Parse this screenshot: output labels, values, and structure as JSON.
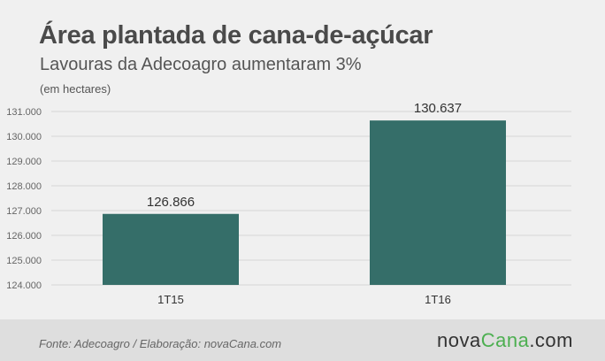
{
  "chart_data": {
    "type": "bar",
    "title": "Área plantada de cana-de-açúcar",
    "subtitle": "Lavouras da Adecoagro aumentaram 3%",
    "unit_label": "(em hectares)",
    "categories": [
      "1T15",
      "1T16"
    ],
    "values": [
      126866,
      130637
    ],
    "value_labels": [
      "126.866",
      "130.637"
    ],
    "ylim": [
      124000,
      131000
    ],
    "yticks": [
      124000,
      125000,
      126000,
      127000,
      128000,
      129000,
      130000,
      131000
    ],
    "ytick_labels": [
      "124.000",
      "125.000",
      "126.000",
      "127.000",
      "128.000",
      "129.000",
      "130.000",
      "131.000"
    ],
    "grid": true,
    "xlabel": "",
    "ylabel": ""
  },
  "colors": {
    "bar": "#356e69",
    "grid": "#d6d6d6",
    "background": "#f0f0f0",
    "footer": "#dedede",
    "logo_accent": "#4caf50"
  },
  "footer": {
    "source": "Fonte: Adecoagro / Elaboração: novaCana.com",
    "logo_part1": "nova",
    "logo_part2": "Cana",
    "logo_part3": ".com"
  }
}
